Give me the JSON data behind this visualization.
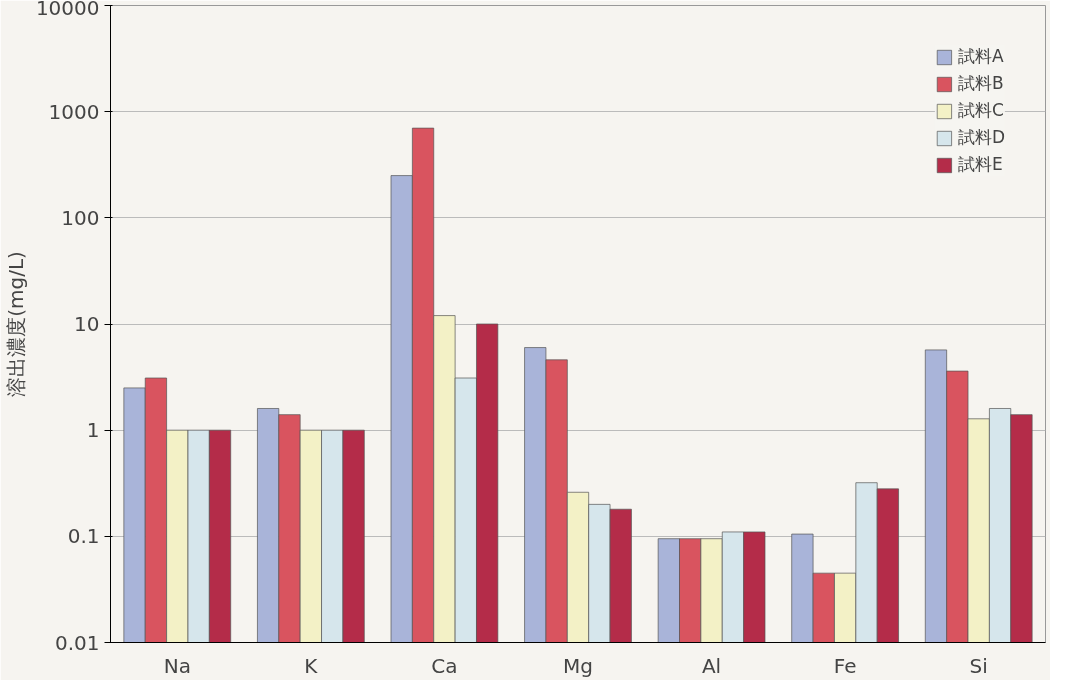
{
  "chart_data": {
    "type": "bar",
    "ylabel": "溶出濃度(mg/L)",
    "categories": [
      "Na",
      "K",
      "Ca",
      "Mg",
      "Al",
      "Fe",
      "Si"
    ],
    "log": true,
    "ylim": [
      0.01,
      10000
    ],
    "yticks": [
      0.01,
      0.1,
      1,
      10,
      100,
      1000,
      10000
    ],
    "grid": "y",
    "legend": "top right",
    "series": [
      {
        "name": "試料A",
        "color": "#a9b4d9",
        "values": [
          2.5,
          1.6,
          250,
          6,
          0.095,
          0.105,
          5.7
        ]
      },
      {
        "name": "試料B",
        "color": "#d9545f",
        "values": [
          3.1,
          1.4,
          700,
          4.6,
          0.095,
          0.045,
          3.6
        ]
      },
      {
        "name": "試料C",
        "color": "#f3f1c6",
        "values": [
          1,
          1,
          12,
          0.26,
          0.095,
          0.045,
          1.28
        ]
      },
      {
        "name": "試料D",
        "color": "#d6e6ec",
        "values": [
          1,
          1,
          3.1,
          0.2,
          0.11,
          0.32,
          1.6
        ]
      },
      {
        "name": "試料E",
        "color": "#b42c49",
        "values": [
          1,
          1,
          10,
          0.18,
          0.11,
          0.28,
          1.4
        ]
      }
    ]
  }
}
